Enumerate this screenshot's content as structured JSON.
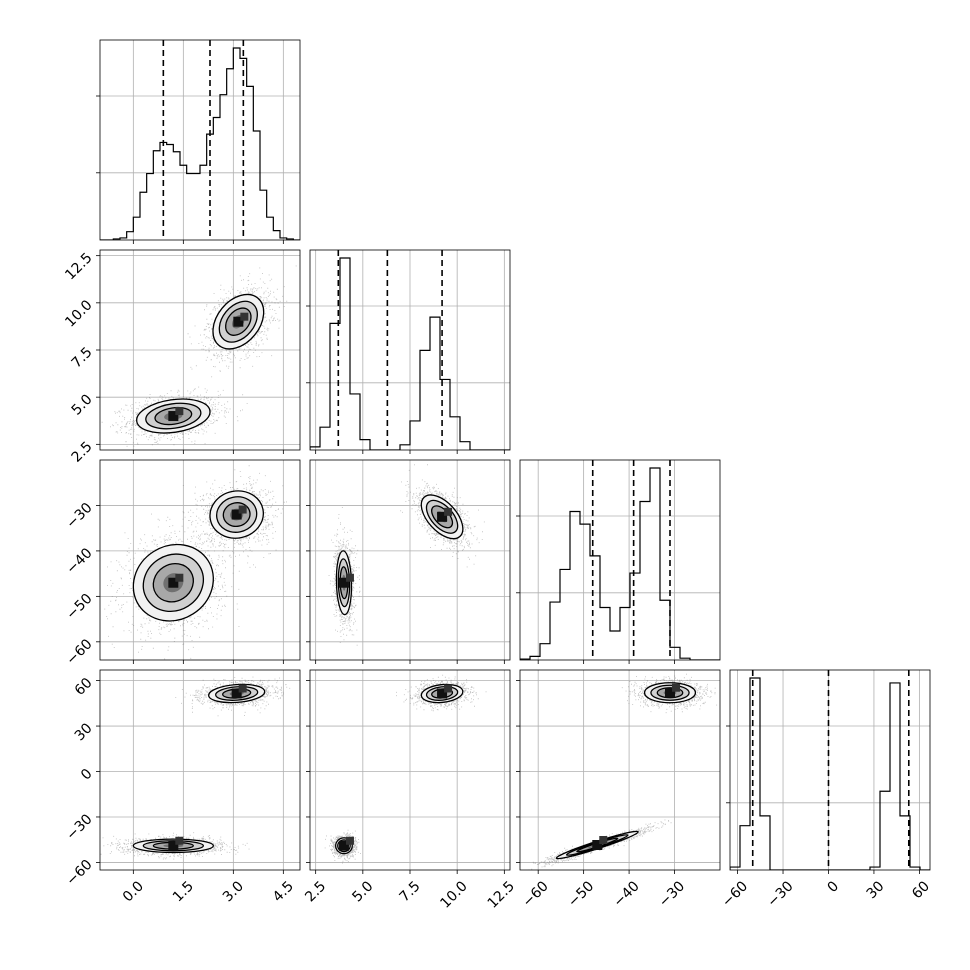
{
  "chart_data": {
    "type": "corner",
    "grid": true,
    "parameters": [
      {
        "range": [
          -1.0,
          5.0
        ],
        "ticks": [
          0.0,
          1.5,
          3.0,
          4.5
        ],
        "tick_labels": [
          "0.0",
          "1.5",
          "3.0",
          "4.5"
        ]
      },
      {
        "range": [
          2.2,
          12.8
        ],
        "ticks": [
          2.5,
          5.0,
          7.5,
          10.0,
          12.5
        ],
        "tick_labels": [
          "2.5",
          "5.0",
          "7.5",
          "10.0",
          "12.5"
        ]
      },
      {
        "range": [
          -64,
          -20
        ],
        "ticks": [
          -60,
          -50,
          -40,
          -30
        ],
        "tick_labels": [
          "−60",
          "−50",
          "−40",
          "−30"
        ]
      },
      {
        "range": [
          -65,
          67
        ],
        "ticks": [
          -60,
          -30,
          0,
          30,
          60
        ],
        "tick_labels": [
          "−60",
          "−30",
          "0",
          "30",
          "60"
        ]
      }
    ],
    "quantiles": [
      [
        0.9,
        2.3,
        3.3
      ],
      [
        3.7,
        6.3,
        9.2
      ],
      [
        -48.0,
        -39.0,
        -31.0
      ],
      [
        -50.0,
        0.0,
        53.0
      ]
    ],
    "histograms": [
      {
        "bins": [
          -1.0,
          -0.8,
          -0.6,
          -0.4,
          -0.2,
          0.0,
          0.2,
          0.4,
          0.6,
          0.8,
          1.0,
          1.2,
          1.4,
          1.6,
          1.8,
          2.0,
          2.2,
          2.4,
          2.6,
          2.8,
          3.0,
          3.2,
          3.4,
          3.6,
          3.8,
          4.0,
          4.2,
          4.4,
          4.6,
          4.8,
          5.0
        ],
        "counts": [
          0,
          0,
          1,
          2,
          8,
          22,
          46,
          64,
          86,
          94,
          92,
          85,
          72,
          64,
          64,
          72,
          102,
          118,
          140,
          165,
          185,
          175,
          148,
          105,
          48,
          22,
          9,
          2,
          1,
          0
        ]
      },
      {
        "bins": [
          2.2,
          2.73,
          3.26,
          3.79,
          4.32,
          4.85,
          5.38,
          5.91,
          6.44,
          6.97,
          7.5,
          8.03,
          8.56,
          9.09,
          9.62,
          10.15,
          10.68,
          11.21,
          11.74,
          12.27,
          12.8
        ],
        "counts": [
          3,
          22,
          122,
          185,
          54,
          10,
          0,
          0,
          0,
          5,
          28,
          96,
          128,
          68,
          32,
          8,
          0,
          0,
          0,
          0
        ]
      },
      {
        "bins": [
          -64,
          -61.8,
          -59.6,
          -57.4,
          -55.2,
          -53,
          -50.8,
          -48.6,
          -46.4,
          -44.2,
          -42,
          -39.8,
          -37.6,
          -35.4,
          -33.2,
          -31,
          -28.8,
          -26.6,
          -24.4,
          -22.2,
          -20
        ],
        "counts": [
          1,
          4,
          18,
          64,
          100,
          164,
          150,
          115,
          58,
          32,
          58,
          96,
          175,
          212,
          66,
          14,
          2,
          0,
          0,
          0
        ]
      },
      {
        "bins": [
          -65,
          -58.4,
          -51.8,
          -45.2,
          -38.6,
          -32,
          -25.4,
          -18.8,
          -12.2,
          -5.6,
          1,
          7.6,
          14.2,
          20.8,
          27.4,
          34,
          40.6,
          47.2,
          53.8,
          60.4,
          67
        ],
        "counts": [
          3,
          45,
          195,
          55,
          0,
          0,
          0,
          0,
          0,
          0,
          0,
          0,
          0,
          0,
          3,
          80,
          190,
          55,
          3,
          0
        ]
      }
    ],
    "modes": [
      {
        "center": [
          1.2,
          4.0
        ],
        "sigma": [
          0.55,
          0.45
        ],
        "rho": 0.25
      },
      {
        "center": [
          3.15,
          9.0
        ],
        "sigma": [
          0.38,
          0.72
        ],
        "rho": 0.35
      },
      {
        "center": [
          1.2,
          -47.0
        ],
        "sigma": [
          0.6,
          4.2
        ],
        "rho": 0.1
      },
      {
        "center": [
          3.1,
          -32.0
        ],
        "sigma": [
          0.4,
          2.6
        ],
        "rho": 0.05
      },
      {
        "center": [
          4.0,
          -47.0
        ],
        "sigma": [
          0.2,
          3.5
        ],
        "rho": -0.1
      },
      {
        "center": [
          9.2,
          -32.5
        ],
        "sigma": [
          0.55,
          2.4
        ],
        "rho": -0.55
      },
      {
        "center": [
          1.2,
          -49.0
        ],
        "sigma": [
          0.6,
          2.2
        ],
        "rho": 0.0
      },
      {
        "center": [
          3.1,
          51.5
        ],
        "sigma": [
          0.42,
          3.0
        ],
        "rho": 0.2
      },
      {
        "center": [
          4.0,
          -49.0
        ],
        "sigma": [
          0.22,
          2.6
        ],
        "rho": 0.0
      },
      {
        "center": [
          9.2,
          51.5
        ],
        "sigma": [
          0.55,
          3.0
        ],
        "rho": 0.2
      },
      {
        "center": [
          -47.0,
          -48.5
        ],
        "sigma": [
          4.5,
          4.5
        ],
        "rho": 0.96
      },
      {
        "center": [
          -31.0,
          52.0
        ],
        "sigma": [
          2.8,
          3.3
        ],
        "rho": 0.0
      }
    ],
    "panels_2d": [
      {
        "row": 1,
        "col": 0,
        "modes": [
          0,
          1
        ]
      },
      {
        "row": 2,
        "col": 0,
        "modes": [
          2,
          3
        ]
      },
      {
        "row": 2,
        "col": 1,
        "modes": [
          4,
          5
        ]
      },
      {
        "row": 3,
        "col": 0,
        "modes": [
          6,
          7
        ]
      },
      {
        "row": 3,
        "col": 1,
        "modes": [
          8,
          9
        ]
      },
      {
        "row": 3,
        "col": 2,
        "modes": [
          10,
          11
        ]
      }
    ]
  }
}
